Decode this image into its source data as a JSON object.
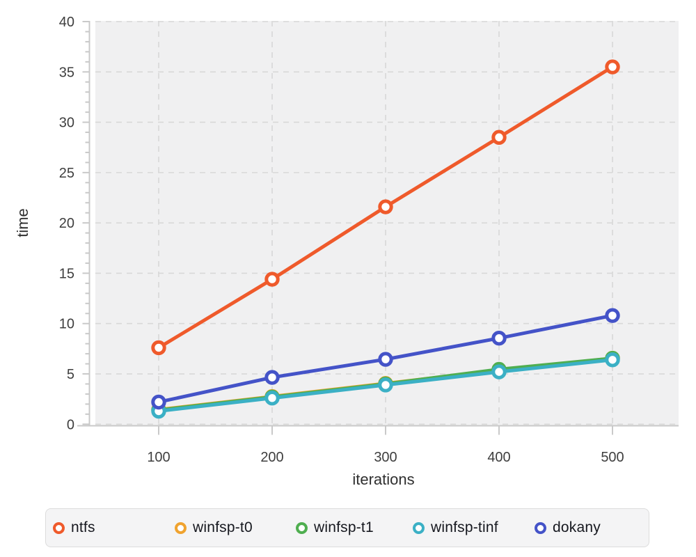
{
  "chart_data": {
    "type": "line",
    "x": [
      100,
      200,
      300,
      400,
      500
    ],
    "series": [
      {
        "name": "ntfs",
        "color": "#ef5a2b",
        "values": [
          7.6,
          14.4,
          21.6,
          28.5,
          35.5
        ]
      },
      {
        "name": "winfsp-t0",
        "color": "#f0a32f",
        "values": [
          1.45,
          2.75,
          4.05,
          5.35,
          6.55
        ]
      },
      {
        "name": "winfsp-t1",
        "color": "#4fae50",
        "values": [
          1.4,
          2.7,
          4.0,
          5.45,
          6.55
        ]
      },
      {
        "name": "winfsp-tinf",
        "color": "#3bb0c5",
        "values": [
          1.3,
          2.6,
          3.9,
          5.2,
          6.4
        ]
      },
      {
        "name": "dokany",
        "color": "#4453c8",
        "values": [
          2.2,
          4.65,
          6.45,
          8.55,
          10.8
        ]
      }
    ],
    "title": "",
    "xlabel": "iterations",
    "ylabel": "time",
    "xlim": [
      100,
      500
    ],
    "ylim": [
      0,
      40
    ],
    "xticks": [
      "100",
      "200",
      "300",
      "400",
      "500"
    ],
    "yticks": [
      "0",
      "5",
      "10",
      "15",
      "20",
      "25",
      "30",
      "35",
      "40"
    ],
    "y_minor_tick_step": 1,
    "grid": "dashed",
    "legend_position": "bottom"
  },
  "legend": {
    "items": [
      {
        "label": "ntfs",
        "color": "#ef5a2b"
      },
      {
        "label": "winfsp-t0",
        "color": "#f0a32f"
      },
      {
        "label": "winfsp-t1",
        "color": "#4fae50"
      },
      {
        "label": "winfsp-tinf",
        "color": "#3bb0c5"
      },
      {
        "label": "dokany",
        "color": "#4453c8"
      }
    ]
  },
  "styles": {
    "panel_bg": "#f0f0f1",
    "grid_color": "#d8d8d8",
    "axis_color": "#c9c9c9",
    "tick_label_color": "#3e3e3e",
    "axis_label_color": "#2f2f2f",
    "legend_bg": "#f4f4f5",
    "legend_border": "#dcdcdc",
    "legend_text": "#16181f"
  }
}
